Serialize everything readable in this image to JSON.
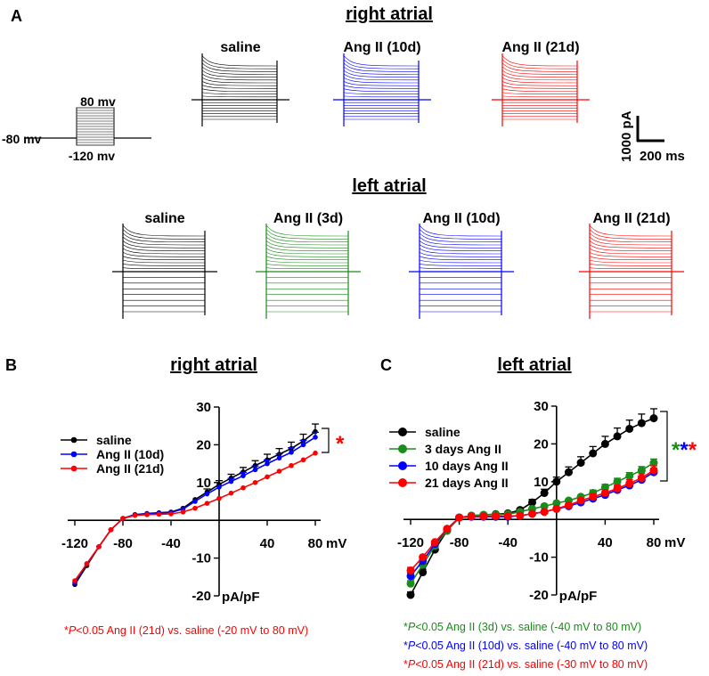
{
  "panel_a": {
    "label": "A",
    "right_title": "right atrial",
    "left_title": "left atrial",
    "protocol": {
      "top": "80 mv",
      "hold": "-80 mv",
      "bottom": "-120 mv"
    },
    "scale_bar": {
      "amp": "1000 pA",
      "time": "200 ms"
    },
    "right_traces": [
      {
        "label": "saline",
        "color": "#000000"
      },
      {
        "label": "Ang II (10d)",
        "color": "#0000ff"
      },
      {
        "label": "Ang II (21d)",
        "color": "#ff0000"
      }
    ],
    "left_traces": [
      {
        "label": "saline",
        "color": "#000000"
      },
      {
        "label": "Ang II (3d)",
        "color": "#1a8c1a"
      },
      {
        "label": "Ang II (10d)",
        "color": "#0000ff"
      },
      {
        "label": "Ang II (21d)",
        "color": "#ff0000"
      }
    ]
  },
  "panel_b": {
    "label": "B",
    "star": "*",
    "star_color": "#ff0000"
  },
  "panel_c": {
    "label": "C",
    "stars": [
      {
        "text": "*",
        "color": "#1a8c1a"
      },
      {
        "text": "*",
        "color": "#0000ff"
      },
      {
        "text": "*",
        "color": "#ff0000"
      }
    ]
  },
  "stats": {
    "b": [
      {
        "star": "*",
        "p": "P",
        "rest": "<0.05 Ang II (21d) vs. saline (-20 mV to 80 mV)",
        "color": "#ff0000"
      }
    ],
    "c": [
      {
        "star": "*",
        "p": "P",
        "rest": "<0.05 Ang II (3d) vs. saline (-40 mV to 80 mV)",
        "color": "#1a8c1a"
      },
      {
        "star": "*",
        "p": "P",
        "rest": "<0.05 Ang II (10d) vs. saline (-40 mV to 80 mV)",
        "color": "#0000ff"
      },
      {
        "star": "*",
        "p": "P",
        "rest": "<0.05 Ang II (21d) vs. saline (-30 mV to 80 mV)",
        "color": "#ff0000"
      }
    ]
  },
  "chart_data": [
    {
      "type": "line",
      "title": "right atrial",
      "xlabel": "mV",
      "ylabel": "pA/pF",
      "xlim": [
        -120,
        80
      ],
      "ylim": [
        -20,
        30
      ],
      "xticks": [
        -120,
        -80,
        -40,
        40,
        80
      ],
      "yticks": [
        -20,
        -10,
        10,
        20,
        30
      ],
      "x": [
        -120,
        -110,
        -100,
        -90,
        -80,
        -70,
        -60,
        -50,
        -40,
        -30,
        -20,
        -10,
        0,
        10,
        20,
        30,
        40,
        50,
        60,
        70,
        80
      ],
      "series": [
        {
          "name": "saline",
          "color": "#000000",
          "values": [
            -17,
            -12,
            -7,
            -2.5,
            0.5,
            1.5,
            1.8,
            2.0,
            2.2,
            3.2,
            5.5,
            7.5,
            9.5,
            11.2,
            12.8,
            14.5,
            16.0,
            17.5,
            19.0,
            21.0,
            23.5
          ],
          "errors": [
            0.5,
            0.5,
            0.5,
            0.4,
            0.3,
            0.3,
            0.3,
            0.3,
            0.3,
            0.4,
            0.6,
            0.8,
            1.0,
            1.0,
            1.2,
            1.3,
            1.5,
            1.5,
            1.7,
            1.8,
            2.0
          ]
        },
        {
          "name": "Ang II (10d)",
          "color": "#0000ff",
          "values": [
            -16.5,
            -11.5,
            -7,
            -2.5,
            0.5,
            1.5,
            1.7,
            1.9,
            2.1,
            3.0,
            5.0,
            7.0,
            8.8,
            10.3,
            11.8,
            13.4,
            15.0,
            16.5,
            18.0,
            20.0,
            22.0
          ],
          "errors": [
            0.5,
            0.5,
            0.5,
            0.4,
            0.3,
            0.3,
            0.3,
            0.3,
            0.3,
            0.4,
            0.5,
            0.6,
            0.7,
            0.8,
            0.9,
            1.0,
            1.0,
            1.1,
            1.2,
            1.2,
            1.3
          ]
        },
        {
          "name": "Ang II (21d)",
          "color": "#ff0000",
          "values": [
            -16,
            -11.5,
            -7,
            -2.5,
            0.5,
            1.3,
            1.5,
            1.6,
            1.7,
            2.2,
            3.2,
            4.5,
            5.8,
            7.2,
            8.6,
            10.0,
            11.5,
            13.0,
            14.5,
            16.0,
            17.8
          ],
          "errors": [
            0.5,
            0.5,
            0.5,
            0.4,
            0.3,
            0.3,
            0.3,
            0.3,
            0.3,
            0.3,
            0.4,
            0.4,
            0.5,
            0.5,
            0.5,
            0.6,
            0.6,
            0.6,
            0.6,
            0.6,
            0.6
          ]
        }
      ]
    },
    {
      "type": "line",
      "title": "left atrial",
      "xlabel": "mV",
      "ylabel": "pA/pF",
      "xlim": [
        -120,
        80
      ],
      "ylim": [
        -20,
        30
      ],
      "xticks": [
        -120,
        -80,
        -40,
        40,
        80
      ],
      "yticks": [
        -20,
        -10,
        10,
        20,
        30
      ],
      "x": [
        -120,
        -110,
        -100,
        -90,
        -80,
        -70,
        -60,
        -50,
        -40,
        -30,
        -20,
        -10,
        0,
        10,
        20,
        30,
        40,
        50,
        60,
        70,
        80
      ],
      "series": [
        {
          "name": "saline",
          "color": "#000000",
          "values": [
            -20,
            -14,
            -8,
            -3,
            0.5,
            1.0,
            1.2,
            1.4,
            1.6,
            2.5,
            4.5,
            7.0,
            10.0,
            12.5,
            15.0,
            17.5,
            20.0,
            22.0,
            24.0,
            25.5,
            26.8
          ],
          "errors": [
            0.8,
            0.8,
            0.7,
            0.5,
            0.4,
            0.4,
            0.4,
            0.4,
            0.4,
            0.6,
            0.8,
            1.0,
            1.2,
            1.4,
            1.6,
            1.8,
            2.0,
            2.2,
            2.3,
            2.4,
            2.5
          ]
        },
        {
          "name": "3 days Ang II",
          "color": "#1a8c1a",
          "values": [
            -17,
            -12,
            -7,
            -3,
            0.5,
            1.0,
            1.2,
            1.3,
            1.4,
            2.0,
            2.8,
            3.5,
            4.3,
            5.0,
            6.0,
            7.0,
            8.5,
            10.0,
            11.5,
            13.0,
            15.0
          ],
          "errors": [
            0.8,
            0.7,
            0.6,
            0.5,
            0.4,
            0.4,
            0.4,
            0.4,
            0.4,
            0.5,
            0.5,
            0.6,
            0.6,
            0.7,
            0.7,
            0.8,
            0.8,
            0.9,
            0.9,
            1.0,
            1.0
          ]
        },
        {
          "name": "10 days Ang II",
          "color": "#0000ff",
          "values": [
            -15,
            -11,
            -6.5,
            -2.5,
            0.5,
            0.7,
            0.7,
            0.7,
            0.7,
            1.0,
            1.5,
            2.0,
            2.8,
            3.5,
            4.5,
            5.5,
            6.5,
            7.8,
            9.0,
            10.5,
            12.5
          ],
          "errors": [
            0.8,
            0.7,
            0.6,
            0.5,
            0.4,
            0.4,
            0.4,
            0.4,
            0.4,
            0.4,
            0.5,
            0.5,
            0.6,
            0.6,
            0.7,
            0.8,
            0.8,
            0.9,
            0.9,
            1.0,
            1.0
          ]
        },
        {
          "name": "21 days Ang II",
          "color": "#ff0000",
          "values": [
            -13.5,
            -10,
            -6,
            -2.5,
            0.5,
            0.8,
            0.8,
            0.9,
            0.9,
            1.0,
            1.5,
            2.0,
            2.8,
            3.8,
            5.0,
            6.0,
            7.0,
            8.2,
            9.5,
            11.0,
            13.0
          ],
          "errors": [
            0.8,
            0.7,
            0.6,
            0.5,
            0.4,
            0.4,
            0.4,
            0.4,
            0.4,
            0.4,
            0.5,
            0.5,
            0.6,
            0.6,
            0.7,
            0.8,
            0.8,
            0.9,
            1.0,
            1.1,
            1.2
          ]
        }
      ]
    }
  ]
}
